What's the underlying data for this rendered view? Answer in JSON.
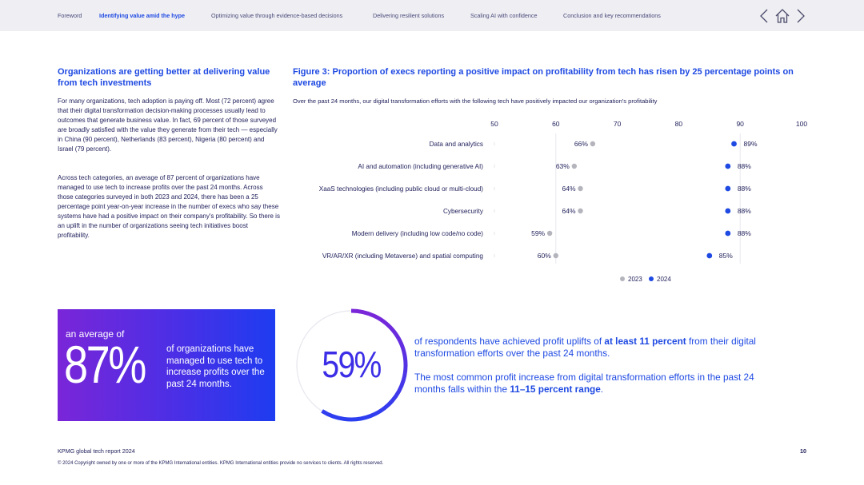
{
  "nav": {
    "items": [
      {
        "label": "Foreword",
        "active": false
      },
      {
        "label": "Identifying value amid the hype",
        "active": true
      },
      {
        "label": "Optimizing value through evidence-based decisions",
        "active": false
      },
      {
        "label": "Delivering resilient solutions",
        "active": false
      },
      {
        "label": "Scaling AI with confidence",
        "active": false
      },
      {
        "label": "Conclusion and key recommendations",
        "active": false
      }
    ],
    "icons": [
      "chevron-left-icon",
      "home-icon",
      "chevron-right-icon"
    ]
  },
  "left": {
    "title": "Organizations are getting better at delivering value from tech investments",
    "para1": "For many organizations, tech adoption is paying off. Most (72 percent) agree that their digital transformation decision-making processes usually lead to outcomes that generate business value. In fact, 69 percent of those surveyed are broadly satisfied with the value they generate from their tech — especially in China (90 percent), Netherlands (83 percent), Nigeria (80 percent) and Israel (79 percent).",
    "para2": "Across tech categories, an average of 87 percent of organizations have managed to use tech to increase profits over the past 24 months. Across those categories surveyed in both 2023 and 2024, there has been a 25 percentage point year-on-year increase in the number of execs who say these systems have had a positive impact on their company's profitability. So there is an uplift in the number of organizations seeing tech initiatives boost profitability."
  },
  "figure": {
    "title": "Figure 3: Proportion of execs reporting a positive impact on profitability from tech has risen by 25 percentage points on average",
    "subtitle": "Over the past 24 months, our digital transformation efforts with the following tech have positively impacted our organization's profitability"
  },
  "chart_data": {
    "type": "dot-plot",
    "x_ticks": [
      50,
      60,
      70,
      80,
      90,
      100
    ],
    "xlim": [
      50,
      100
    ],
    "categories": [
      "Data and analytics",
      "AI and automation (including generative AI)",
      "XaaS technologies (including public cloud or multi-cloud)",
      "Cybersecurity",
      "Modern delivery (including low code/no code)",
      "VR/AR/XR (including Metaverse) and spatial computing"
    ],
    "series": [
      {
        "name": "2023",
        "color": "#b4b4bc",
        "values": [
          66,
          63,
          64,
          64,
          59,
          60
        ]
      },
      {
        "name": "2024",
        "color": "#1e49e2",
        "values": [
          89,
          88,
          88,
          88,
          88,
          85
        ]
      }
    ],
    "value_suffix": "%",
    "grid": false,
    "legend": "bottom"
  },
  "stat_box": {
    "prefix": "an average of",
    "value": "87%",
    "text": "of organizations have managed to use tech to increase profits over the past 24 months."
  },
  "ring_stat": {
    "value": "59%",
    "fraction": 0.59,
    "color": "#3b2ee6"
  },
  "right": {
    "p1_a": "of respondents have achieved profit uplifts of ",
    "p1_b": "at least 11 percent",
    "p1_c": " from their digital transformation efforts over the past 24 months.",
    "p2_a": "The most common profit increase from digital transformation efforts in the past 24 months falls within the ",
    "p2_b": "11–15 percent range",
    "p2_c": "."
  },
  "footer": {
    "report": "KPMG global tech report 2024",
    "page": "10",
    "copyright": "© 2024 Copyright owned by one or more of the KPMG International entities. KPMG International entities provide no services to clients. All rights reserved."
  }
}
